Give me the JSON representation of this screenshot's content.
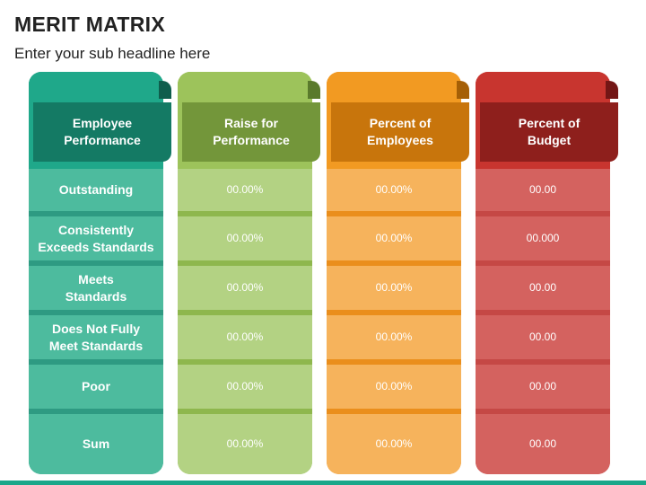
{
  "title": "MERIT MATRIX",
  "subtitle": "Enter your sub headline here",
  "columns": [
    {
      "header": "Employee\nPerformance",
      "colors": {
        "top": "#1fa88a",
        "banner": "#147a64",
        "fold": "#0f5e4d",
        "divider": "#2e9a82",
        "row": "#4dbb9e"
      },
      "cells": [
        "Outstanding",
        "Consistently\nExceeds Standards",
        "Meets\nStandards",
        "Does Not Fully\nMeet Standards",
        "Poor",
        "Sum"
      ]
    },
    {
      "header": "Raise for\nPerformance",
      "colors": {
        "top": "#9dc35b",
        "banner": "#73963a",
        "fold": "#5a7a2c",
        "divider": "#8eb74d",
        "row": "#b3d283"
      },
      "cells": [
        "00.00%",
        "00.00%",
        "00.00%",
        "00.00%",
        "00.00%",
        "00.00%"
      ]
    },
    {
      "header": "Percent of\nEmployees",
      "colors": {
        "top": "#f29a22",
        "banner": "#c8750c",
        "fold": "#a55f06",
        "divider": "#ea8e1c",
        "row": "#f6b35c"
      },
      "cells": [
        "00.00%",
        "00.00%",
        "00.00%",
        "00.00%",
        "00.00%",
        "00.00%"
      ]
    },
    {
      "header": "Percent of\nBudget",
      "colors": {
        "top": "#c8352f",
        "banner": "#8e1f1c",
        "fold": "#731615",
        "divider": "#c54845",
        "row": "#d4625f"
      },
      "cells": [
        "00.00",
        "00.000",
        "00.00",
        "00.00",
        "00.00",
        "00.00"
      ]
    }
  ]
}
